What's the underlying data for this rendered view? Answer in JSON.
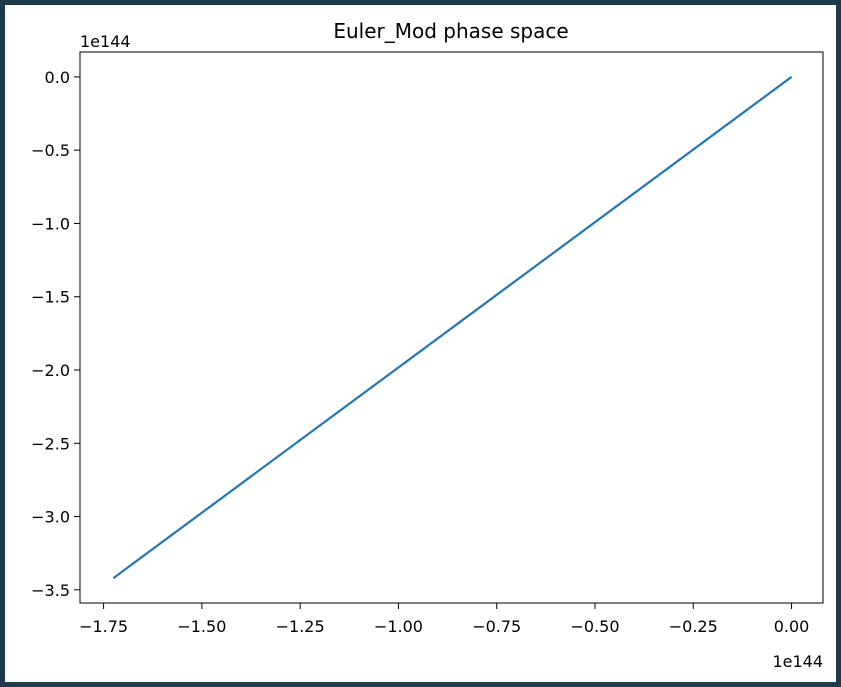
{
  "chart_data": {
    "type": "line",
    "title": "Euler_Mod phase space",
    "xlabel": "",
    "ylabel": "",
    "x_offset_label": "1e144",
    "y_offset_label": "1e144",
    "xlim": [
      -1.81,
      0.08
    ],
    "ylim": [
      -3.59,
      0.17
    ],
    "x_ticks": [
      -1.75,
      -1.5,
      -1.25,
      -1.0,
      -0.75,
      -0.5,
      -0.25,
      0.0
    ],
    "x_tick_labels": [
      "−1.75",
      "−1.50",
      "−1.25",
      "−1.00",
      "−0.75",
      "−0.50",
      "−0.25",
      "0.00"
    ],
    "y_ticks": [
      0.0,
      -0.5,
      -1.0,
      -1.5,
      -2.0,
      -2.5,
      -3.0,
      -3.5
    ],
    "y_tick_labels": [
      "0.0",
      "−0.5",
      "−1.0",
      "−1.5",
      "−2.0",
      "−2.5",
      "−3.0",
      "−3.5"
    ],
    "grid": false,
    "series": [
      {
        "color": "#1f77b4",
        "x": [
          -1.725,
          0.0
        ],
        "y": [
          -3.42,
          0.0
        ]
      }
    ]
  }
}
